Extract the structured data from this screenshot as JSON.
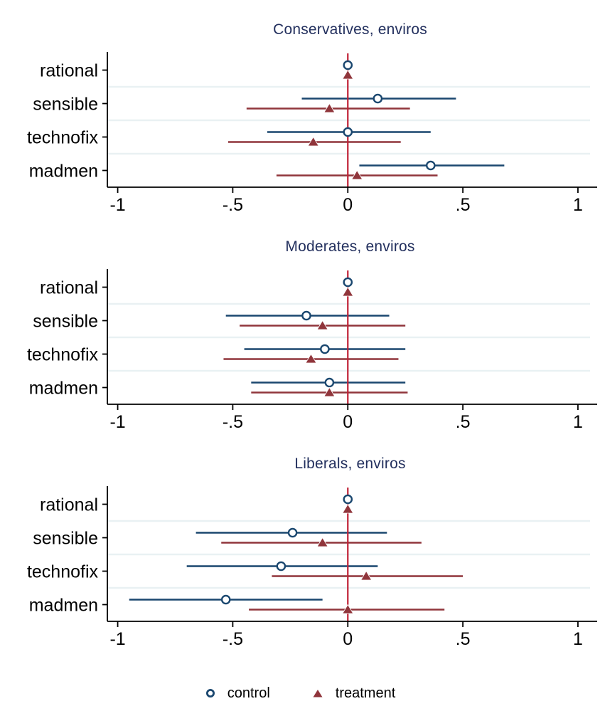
{
  "figure": {
    "background": "#ffffff",
    "categories": [
      "rational",
      "sensible",
      "technofix",
      "madmen"
    ],
    "x_axis": {
      "tick_labels": [
        "-1",
        "-.5",
        "0",
        ".5",
        "1"
      ],
      "tick_values": [
        -1,
        -0.5,
        0,
        0.5,
        1
      ],
      "min": -1.045,
      "max": 1.065,
      "reference_line_x": 0
    }
  },
  "colors": {
    "control": "#1a476f",
    "treatment": "#90353b",
    "zero_line": "#bf2136",
    "gridline": "#e9f1f3",
    "title": "#23305e",
    "axis": "#000000",
    "text": "#000000",
    "background": "#ffffff"
  },
  "legend": {
    "items": [
      {
        "label": "control",
        "marker": "open-circle",
        "color": "#1a476f"
      },
      {
        "label": "treatment",
        "marker": "filled-triangle",
        "color": "#90353b"
      }
    ]
  },
  "chart_data": [
    {
      "type": "scatter",
      "subtype": "coefficient-forest-plot",
      "title": "Conservatives, enviros",
      "categories": [
        "rational",
        "sensible",
        "technofix",
        "madmen"
      ],
      "xlabel": "",
      "ylabel": "",
      "xlim": [
        -1.045,
        1.065
      ],
      "xticks": [
        -1,
        -0.5,
        0,
        0.5,
        1
      ],
      "xtick_labels": [
        "-1",
        "-.5",
        "0",
        ".5",
        "1"
      ],
      "ref_line_x": 0,
      "grid": "horizontal-between-categories",
      "series": [
        {
          "name": "control",
          "marker": "open-circle",
          "color": "#1a476f",
          "values": [
            0.0,
            0.13,
            0.0,
            0.36
          ],
          "ci_low": [
            0.0,
            -0.2,
            -0.35,
            0.05
          ],
          "ci_high": [
            0.0,
            0.47,
            0.36,
            0.68
          ]
        },
        {
          "name": "treatment",
          "marker": "filled-triangle",
          "color": "#90353b",
          "values": [
            0.0,
            -0.08,
            -0.15,
            0.04
          ],
          "ci_low": [
            0.0,
            -0.44,
            -0.52,
            -0.31
          ],
          "ci_high": [
            0.0,
            0.27,
            0.23,
            0.39
          ]
        }
      ]
    },
    {
      "type": "scatter",
      "subtype": "coefficient-forest-plot",
      "title": "Moderates, enviros",
      "categories": [
        "rational",
        "sensible",
        "technofix",
        "madmen"
      ],
      "xlabel": "",
      "ylabel": "",
      "xlim": [
        -1.045,
        1.065
      ],
      "xticks": [
        -1,
        -0.5,
        0,
        0.5,
        1
      ],
      "xtick_labels": [
        "-1",
        "-.5",
        "0",
        ".5",
        "1"
      ],
      "ref_line_x": 0,
      "grid": "horizontal-between-categories",
      "series": [
        {
          "name": "control",
          "marker": "open-circle",
          "color": "#1a476f",
          "values": [
            0.0,
            -0.18,
            -0.1,
            -0.08
          ],
          "ci_low": [
            0.0,
            -0.53,
            -0.45,
            -0.42
          ],
          "ci_high": [
            0.0,
            0.18,
            0.25,
            0.25
          ]
        },
        {
          "name": "treatment",
          "marker": "filled-triangle",
          "color": "#90353b",
          "values": [
            0.0,
            -0.11,
            -0.16,
            -0.08
          ],
          "ci_low": [
            0.0,
            -0.47,
            -0.54,
            -0.42
          ],
          "ci_high": [
            0.0,
            0.25,
            0.22,
            0.26
          ]
        }
      ]
    },
    {
      "type": "scatter",
      "subtype": "coefficient-forest-plot",
      "title": "Liberals, enviros",
      "categories": [
        "rational",
        "sensible",
        "technofix",
        "madmen"
      ],
      "xlabel": "",
      "ylabel": "",
      "xlim": [
        -1.045,
        1.065
      ],
      "xticks": [
        -1,
        -0.5,
        0,
        0.5,
        1
      ],
      "xtick_labels": [
        "-1",
        "-.5",
        "0",
        ".5",
        "1"
      ],
      "ref_line_x": 0,
      "grid": "horizontal-between-categories",
      "series": [
        {
          "name": "control",
          "marker": "open-circle",
          "color": "#1a476f",
          "values": [
            0.0,
            -0.24,
            -0.29,
            -0.53
          ],
          "ci_low": [
            0.0,
            -0.66,
            -0.7,
            -0.95
          ],
          "ci_high": [
            0.0,
            0.17,
            0.13,
            -0.11
          ]
        },
        {
          "name": "treatment",
          "marker": "filled-triangle",
          "color": "#90353b",
          "values": [
            0.0,
            -0.11,
            0.08,
            0.0
          ],
          "ci_low": [
            0.0,
            -0.55,
            -0.33,
            -0.43
          ],
          "ci_high": [
            0.0,
            0.32,
            0.5,
            0.42
          ]
        }
      ]
    }
  ]
}
